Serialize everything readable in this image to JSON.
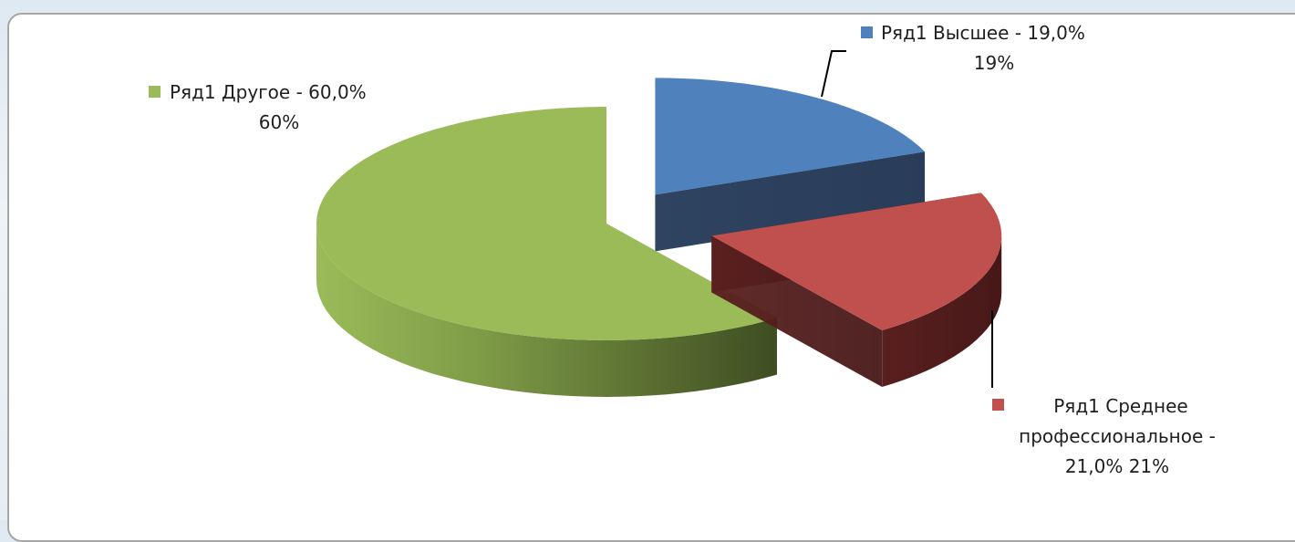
{
  "chart_data": {
    "type": "pie",
    "three_d": true,
    "exploded": true,
    "slices": [
      {
        "key": "higher",
        "category": "Высшее",
        "value": 19,
        "color": "#4f81bd"
      },
      {
        "key": "secondary",
        "category": "Среднее профессиональное",
        "value": 21,
        "color": "#c0504d"
      },
      {
        "key": "other",
        "category": "Другое",
        "value": 60,
        "color": "#9bbb59"
      }
    ],
    "labels": {
      "higher": {
        "lines": [
          "Ряд1 Высшее - 19,0%",
          "19%"
        ]
      },
      "secondary": {
        "lines": [
          "Ряд1 Среднее",
          "профессиональное -",
          "21,0% 21%"
        ]
      },
      "other": {
        "lines": [
          "Ряд1 Другое - 60,0%",
          "60%"
        ]
      }
    }
  }
}
